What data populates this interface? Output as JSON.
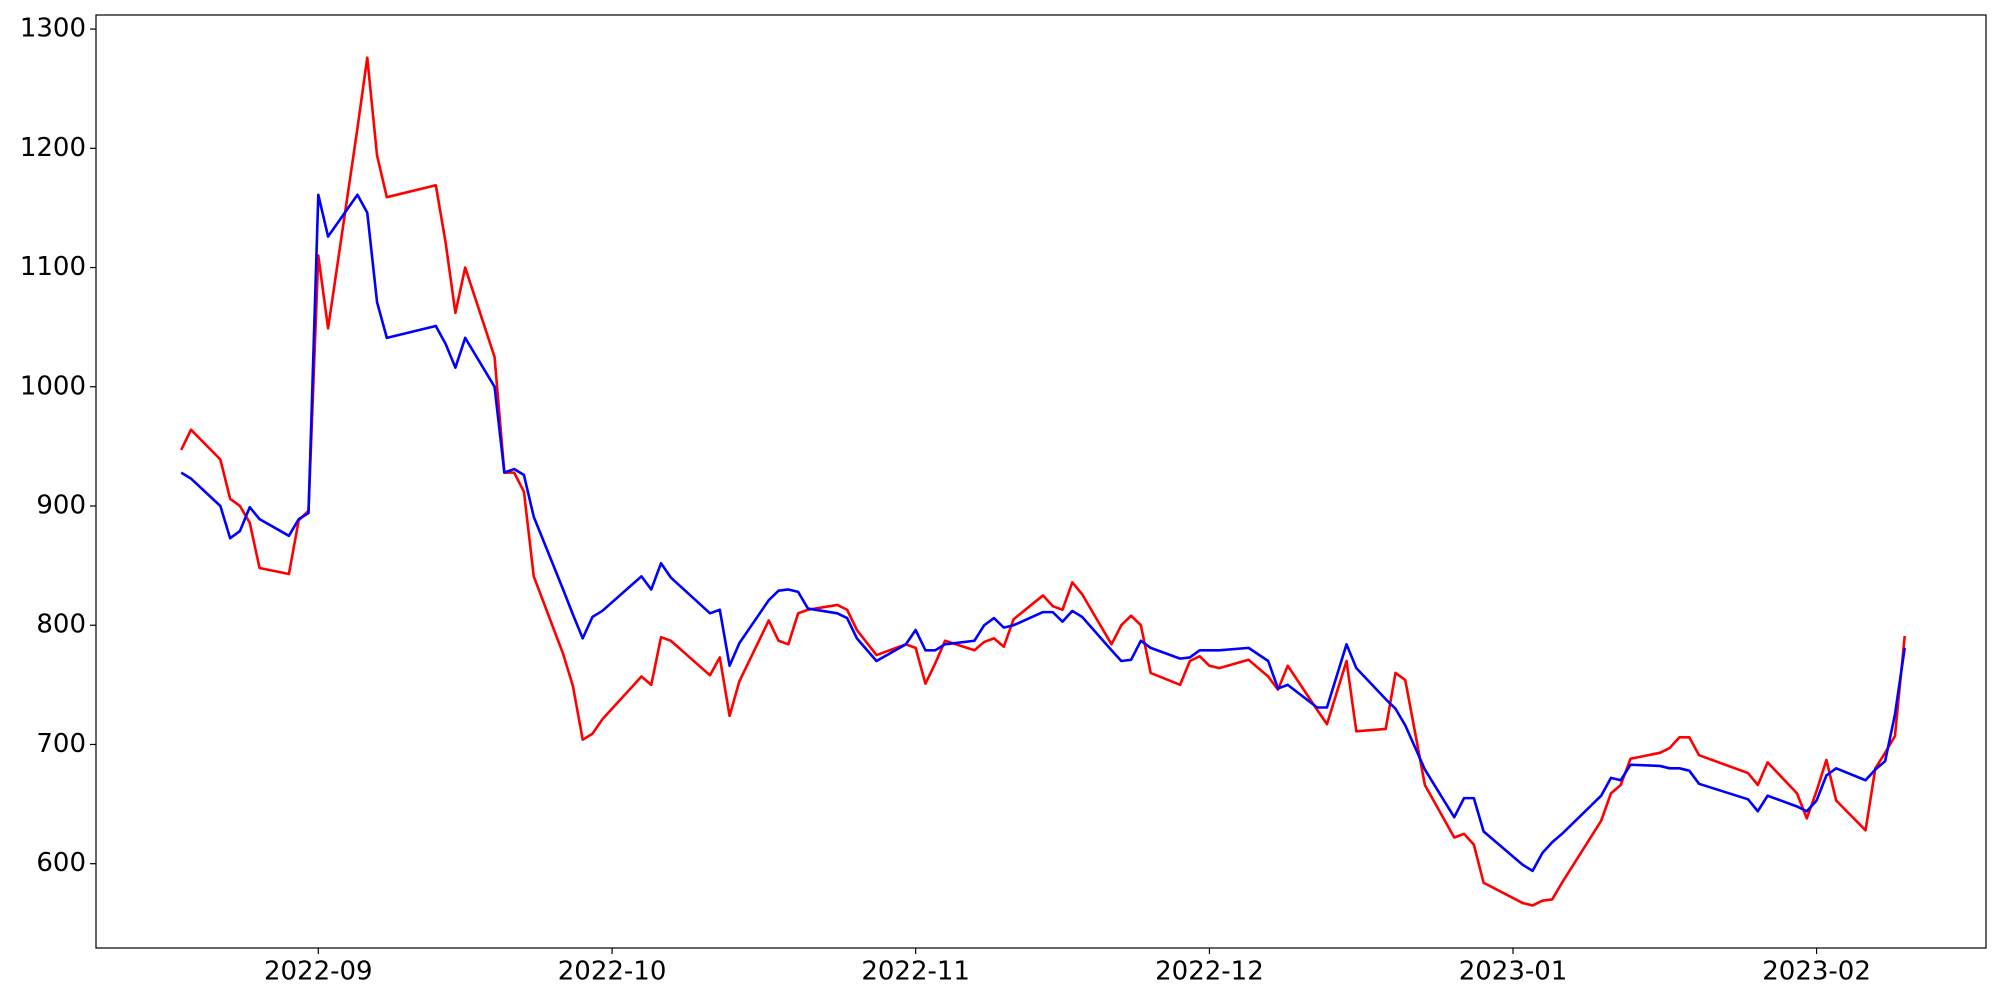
{
  "chart_data": {
    "type": "line",
    "x": [
      19222,
      19223,
      19226,
      19227,
      19228,
      19229,
      19230,
      19233,
      19234,
      19235,
      19236,
      19237,
      19240,
      19241,
      19242,
      19243,
      19248,
      19249,
      19250,
      19251,
      19254,
      19255,
      19256,
      19257,
      19258,
      19261,
      19262,
      19263,
      19264,
      19265,
      19269,
      19270,
      19271,
      19272,
      19276,
      19277,
      19278,
      19279,
      19282,
      19283,
      19284,
      19285,
      19286,
      19289,
      19290,
      19291,
      19293,
      19296,
      19297,
      19298,
      19299,
      19300,
      19303,
      19304,
      19305,
      19306,
      19307,
      19310,
      19311,
      19312,
      19313,
      19314,
      19317,
      19318,
      19319,
      19320,
      19321,
      19324,
      19325,
      19326,
      19327,
      19328,
      19331,
      19333,
      19334,
      19335,
      19338,
      19339,
      19341,
      19342,
      19345,
      19346,
      19347,
      19349,
      19352,
      19353,
      19354,
      19355,
      19359,
      19360,
      19361,
      19362,
      19363,
      19367,
      19368,
      19369,
      19370,
      19373,
      19374,
      19375,
      19376,
      19377,
      19382,
      19383,
      19384,
      19387,
      19388,
      19389,
      19390,
      19391,
      19394,
      19395,
      19396,
      19397,
      19398
    ],
    "series": [
      {
        "color": "#ff0000",
        "values": [
          947,
          964,
          939,
          906,
          900,
          886,
          848,
          843,
          888,
          896,
          1110,
          1049,
          1217,
          1276,
          1194,
          1159,
          1169,
          1121,
          1062,
          1100,
          1025,
          928,
          928,
          912,
          841,
          776,
          749,
          704,
          709,
          721,
          757,
          750,
          790,
          787,
          758,
          773,
          724,
          753,
          804,
          787,
          784,
          810,
          813,
          817,
          813,
          796,
          775,
          784,
          781,
          751,
          768,
          787,
          779,
          786,
          789,
          782,
          805,
          825,
          816,
          813,
          836,
          826,
          784,
          800,
          808,
          800,
          760,
          750,
          770,
          774,
          766,
          764,
          771,
          757,
          746,
          766,
          729,
          717,
          770,
          711,
          713,
          760,
          754,
          666,
          622,
          625,
          616,
          584,
          567,
          565,
          569,
          570,
          584,
          636,
          659,
          666,
          688,
          693,
          697,
          706,
          706,
          691,
          676,
          666,
          685,
          659,
          638,
          661,
          687,
          653,
          628,
          680,
          693,
          707,
          791
        ]
      },
      {
        "color": "#0000ff",
        "values": [
          928,
          923,
          900,
          873,
          879,
          899,
          889,
          875,
          889,
          894,
          1161,
          1126,
          1161,
          1146,
          1071,
          1041,
          1051,
          1036,
          1016,
          1041,
          1000,
          928,
          931,
          926,
          891,
          830,
          809,
          789,
          807,
          812,
          841,
          830,
          852,
          840,
          810,
          813,
          766,
          785,
          821,
          829,
          830,
          828,
          814,
          810,
          806,
          789,
          770,
          784,
          796,
          779,
          779,
          784,
          787,
          800,
          806,
          798,
          800,
          811,
          811,
          803,
          812,
          807,
          779,
          770,
          771,
          787,
          781,
          772,
          773,
          779,
          779,
          779,
          781,
          770,
          747,
          750,
          731,
          731,
          784,
          764,
          738,
          730,
          716,
          679,
          639,
          655,
          655,
          627,
          599,
          594,
          609,
          618,
          625,
          657,
          672,
          670,
          683,
          682,
          680,
          680,
          678,
          667,
          654,
          644,
          657,
          648,
          644,
          653,
          674,
          680,
          670,
          679,
          686,
          725,
          781
        ]
      }
    ],
    "xlim": [
      19213.3,
      19406.3
    ],
    "xticks": [
      {
        "value": 19236,
        "label": "2022-09"
      },
      {
        "value": 19266,
        "label": "2022-10"
      },
      {
        "value": 19297,
        "label": "2022-11"
      },
      {
        "value": 19327,
        "label": "2022-12"
      },
      {
        "value": 19358,
        "label": "2023-01"
      },
      {
        "value": 19389,
        "label": "2023-02"
      }
    ],
    "ylim": [
      529.3,
      1311.8
    ],
    "yticks": [
      600,
      700,
      800,
      900,
      1000,
      1100,
      1200,
      1300
    ],
    "grid": false
  }
}
